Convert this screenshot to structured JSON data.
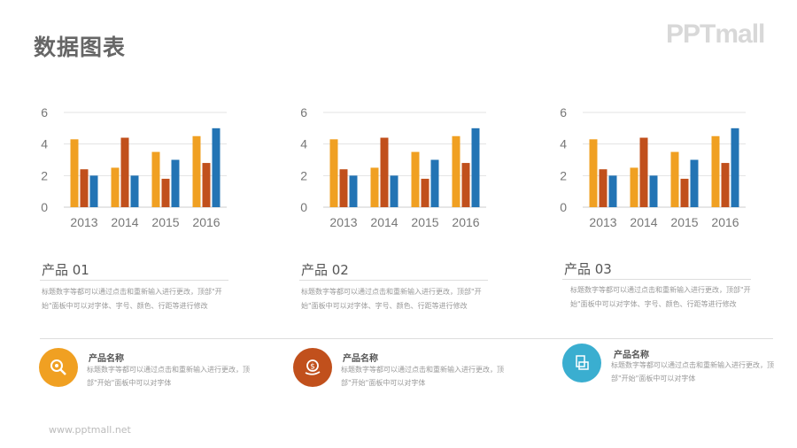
{
  "title": "数据图表",
  "logo": "PPTmall",
  "colors": {
    "series1": "#F0A022",
    "series2": "#C1501C",
    "series3": "#2374B4",
    "icon_orange": "#F0A022",
    "icon_rust": "#C1501C",
    "icon_teal": "#3AAED0"
  },
  "chart_data": [
    {
      "type": "bar",
      "categories": [
        "2013",
        "2014",
        "2015",
        "2016"
      ],
      "series": [
        {
          "values": [
            4.3,
            2.5,
            3.5,
            4.5
          ]
        },
        {
          "values": [
            2.4,
            4.4,
            1.8,
            2.8
          ]
        },
        {
          "values": [
            2.0,
            2.0,
            3.0,
            5.0
          ]
        }
      ],
      "yticks": [
        "0",
        "2",
        "4",
        "6"
      ],
      "ylim": [
        0,
        6
      ],
      "grid": true
    },
    {
      "type": "bar",
      "categories": [
        "2013",
        "2014",
        "2015",
        "2016"
      ],
      "series": [
        {
          "values": [
            4.3,
            2.5,
            3.5,
            4.5
          ]
        },
        {
          "values": [
            2.4,
            4.4,
            1.8,
            2.8
          ]
        },
        {
          "values": [
            2.0,
            2.0,
            3.0,
            5.0
          ]
        }
      ],
      "yticks": [
        "0",
        "2",
        "4",
        "6"
      ],
      "ylim": [
        0,
        6
      ],
      "grid": true
    },
    {
      "type": "bar",
      "categories": [
        "2013",
        "2014",
        "2015",
        "2016"
      ],
      "series": [
        {
          "values": [
            4.3,
            2.5,
            3.5,
            4.5
          ]
        },
        {
          "values": [
            2.4,
            4.4,
            1.8,
            2.8
          ]
        },
        {
          "values": [
            2.0,
            2.0,
            3.0,
            5.0
          ]
        }
      ],
      "yticks": [
        "0",
        "2",
        "4",
        "6"
      ],
      "ylim": [
        0,
        6
      ],
      "grid": true
    }
  ],
  "panels": [
    {
      "title": "产品 01",
      "desc": "标题数字等都可以通过点击和重新输入进行更改，顶部\"开始\"面板中可以对字体、字号、颜色、行距等进行修改"
    },
    {
      "title": "产品 02",
      "desc": "标题数字等都可以通过点击和重新输入进行更改，顶部\"开始\"面板中可以对字体、字号、颜色、行距等进行修改"
    },
    {
      "title": "产品 03",
      "desc": "标题数字等都可以通过点击和重新输入进行更改，顶部\"开始\"面板中可以对字体、字号、颜色、行距等进行修改"
    }
  ],
  "items": [
    {
      "icon": "magnifier-gear-icon",
      "title": "产品名称",
      "desc": "标题数字等都可以通过点击和重新输入进行更改，顶部\"开始\"面板中可以对字体"
    },
    {
      "icon": "money-hand-icon",
      "title": "产品名称",
      "desc": "标题数字等都可以通过点击和重新输入进行更改，顶部\"开始\"面板中可以对字体"
    },
    {
      "icon": "document-folder-icon",
      "title": "产品名称",
      "desc": "标题数字等都可以通过点击和重新输入进行更改，顶部\"开始\"面板中可以对字体"
    }
  ],
  "footer": "www.pptmall.net"
}
